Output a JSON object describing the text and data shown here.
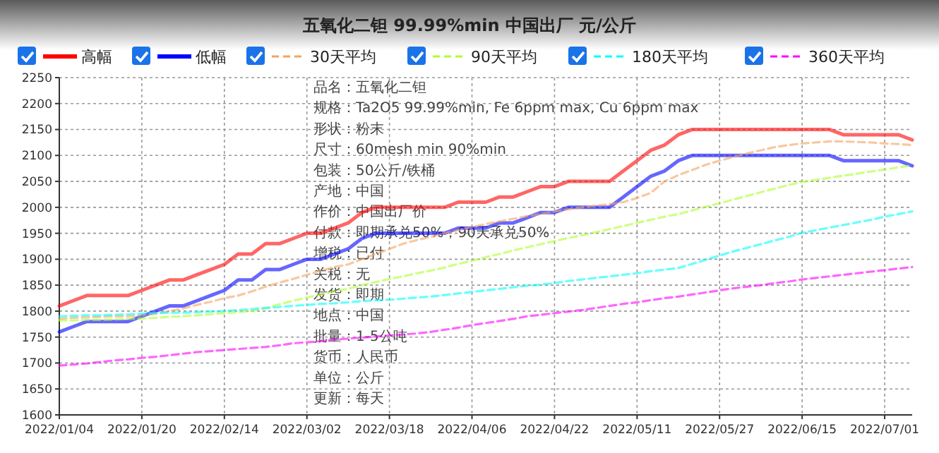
{
  "chart_data": {
    "type": "line",
    "title": "五氧化二钽 99.99%min 中国出厂 元/公斤",
    "categories": [
      "2022/01/04",
      null,
      null,
      null,
      null,
      null,
      "2022/01/20",
      null,
      null,
      null,
      null,
      null,
      "2022/02/14",
      null,
      null,
      null,
      null,
      null,
      "2022/03/02",
      null,
      null,
      null,
      null,
      null,
      "2022/03/18",
      null,
      null,
      null,
      null,
      null,
      "2022/04/06",
      null,
      null,
      null,
      null,
      null,
      "2022/04/22",
      null,
      null,
      null,
      null,
      null,
      "2022/05/11",
      null,
      null,
      null,
      null,
      null,
      "2022/05/27",
      null,
      null,
      null,
      null,
      null,
      "2022/06/15",
      null,
      null,
      null,
      null,
      null,
      "2022/07/01",
      null,
      null
    ],
    "series": [
      {
        "name": "高幅",
        "color": "#ff0000",
        "line_style": "solid",
        "values": [
          1810,
          1820,
          1830,
          1830,
          1830,
          1830,
          1840,
          1850,
          1860,
          1860,
          1870,
          1880,
          1890,
          1910,
          1910,
          1930,
          1930,
          1940,
          1950,
          1950,
          1960,
          1970,
          1990,
          2000,
          2000,
          2000,
          2000,
          2000,
          2000,
          2010,
          2010,
          2010,
          2020,
          2020,
          2030,
          2040,
          2040,
          2050,
          2050,
          2050,
          2050,
          2070,
          2090,
          2110,
          2120,
          2140,
          2150,
          2150,
          2150,
          2150,
          2150,
          2150,
          2150,
          2150,
          2150,
          2150,
          2150,
          2140,
          2140,
          2140,
          2140,
          2140,
          2130
        ]
      },
      {
        "name": "低幅",
        "color": "#0000ff",
        "line_style": "solid",
        "values": [
          1760,
          1770,
          1780,
          1780,
          1780,
          1780,
          1790,
          1800,
          1810,
          1810,
          1820,
          1830,
          1840,
          1860,
          1860,
          1880,
          1880,
          1890,
          1900,
          1900,
          1910,
          1920,
          1940,
          1950,
          1950,
          1950,
          1950,
          1950,
          1950,
          1960,
          1960,
          1960,
          1970,
          1970,
          1980,
          1990,
          1990,
          2000,
          2000,
          2000,
          2000,
          2020,
          2040,
          2060,
          2070,
          2090,
          2100,
          2100,
          2100,
          2100,
          2100,
          2100,
          2100,
          2100,
          2100,
          2100,
          2100,
          2090,
          2090,
          2090,
          2090,
          2090,
          2080
        ]
      },
      {
        "name": "30天平均",
        "color": "#f4a460",
        "line_style": "dashed",
        "values": [
          1785,
          1787,
          1788,
          1789,
          1790,
          1790,
          1792,
          1795,
          1800,
          1805,
          1812,
          1818,
          1825,
          1830,
          1838,
          1847,
          1855,
          1862,
          1870,
          1878,
          1885,
          1890,
          1900,
          1910,
          1920,
          1930,
          1937,
          1943,
          1950,
          1956,
          1962,
          1968,
          1973,
          1978,
          1983,
          1987,
          1992,
          1996,
          2000,
          2003,
          2006,
          2010,
          2018,
          2028,
          2050,
          2062,
          2072,
          2082,
          2090,
          2097,
          2104,
          2110,
          2116,
          2120,
          2123,
          2125,
          2127,
          2127,
          2126,
          2125,
          2123,
          2122,
          2120
        ]
      },
      {
        "name": "90天平均",
        "color": "#adff2f",
        "line_style": "dashed",
        "values": [
          1782,
          1782,
          1783,
          1783,
          1784,
          1785,
          1786,
          1787,
          1789,
          1790,
          1792,
          1794,
          1796,
          1798,
          1800,
          1806,
          1813,
          1820,
          1826,
          1832,
          1838,
          1843,
          1850,
          1856,
          1862,
          1867,
          1873,
          1878,
          1884,
          1891,
          1897,
          1904,
          1910,
          1917,
          1923,
          1929,
          1935,
          1941,
          1946,
          1952,
          1958,
          1964,
          1970,
          1976,
          1982,
          1987,
          1994,
          2001,
          2008,
          2015,
          2022,
          2029,
          2036,
          2043,
          2049,
          2053,
          2057,
          2061,
          2065,
          2069,
          2073,
          2077,
          2081
        ]
      },
      {
        "name": "180天平均",
        "color": "#00ffff",
        "line_style": "dashed",
        "values": [
          1790,
          1791,
          1792,
          1792,
          1793,
          1794,
          1795,
          1796,
          1797,
          1797,
          1798,
          1799,
          1800,
          1802,
          1804,
          1806,
          1808,
          1810,
          1812,
          1814,
          1815,
          1817,
          1819,
          1821,
          1822,
          1824,
          1826,
          1828,
          1831,
          1834,
          1837,
          1840,
          1843,
          1846,
          1849,
          1851,
          1854,
          1858,
          1861,
          1864,
          1867,
          1870,
          1873,
          1877,
          1880,
          1883,
          1891,
          1899,
          1907,
          1915,
          1922,
          1929,
          1936,
          1943,
          1951,
          1956,
          1961,
          1966,
          1971,
          1976,
          1982,
          1987,
          1992
        ]
      },
      {
        "name": "360天平均",
        "color": "#ff00ff",
        "line_style": "dashed",
        "values": [
          1695,
          1697,
          1699,
          1702,
          1705,
          1707,
          1710,
          1712,
          1715,
          1718,
          1721,
          1723,
          1725,
          1727,
          1729,
          1731,
          1734,
          1738,
          1740,
          1742,
          1745,
          1747,
          1749,
          1751,
          1753,
          1755,
          1757,
          1760,
          1764,
          1768,
          1773,
          1777,
          1781,
          1785,
          1790,
          1793,
          1796,
          1799,
          1802,
          1806,
          1810,
          1814,
          1817,
          1821,
          1825,
          1828,
          1832,
          1836,
          1840,
          1844,
          1847,
          1850,
          1854,
          1857,
          1861,
          1864,
          1867,
          1870,
          1873,
          1876,
          1879,
          1882,
          1885
        ]
      }
    ],
    "ylim": [
      1600,
      2250
    ],
    "yticks": [
      1600,
      1650,
      1700,
      1750,
      1800,
      1850,
      1900,
      1950,
      2000,
      2050,
      2100,
      2150,
      2200,
      2250
    ],
    "grid": true,
    "legend": "top",
    "annotations": [
      "品名：五氧化二钽",
      "规格：Ta2O5 99.99%min, Fe 6ppm max, Cu 6ppm max",
      "形状：粉末",
      "尺寸：60mesh min 90%min",
      "包装：50公斤/铁桶",
      "产地：中国",
      "作价：中国出厂价",
      "付款：即期承兑50%，90天承兑50%",
      "增税：已付",
      "关税：无",
      "发货：即期",
      "地点：中国",
      "批量：1-5公吨",
      "货币：人民币",
      "单位：公斤",
      "更新：每天"
    ]
  }
}
